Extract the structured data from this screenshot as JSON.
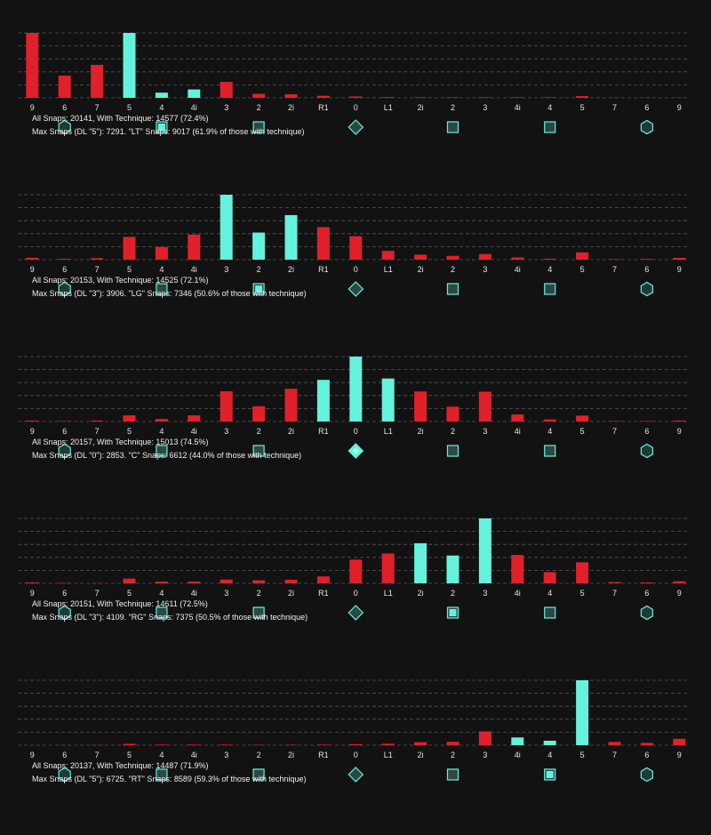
{
  "colors": {
    "technique": "#64f2dc",
    "other": "#e0202a",
    "grid": "#555555",
    "background": "#121212"
  },
  "chart_data": [
    {
      "type": "bar",
      "categories": [
        "9",
        "6",
        "7",
        "5",
        "4",
        "4i",
        "3",
        "2",
        "2i",
        "R1",
        "0",
        "L1",
        "2i",
        "2",
        "3",
        "4i",
        "4",
        "5",
        "7",
        "6",
        "9"
      ],
      "values": [
        7291,
        2500,
        3700,
        7291,
        580,
        940,
        1790,
        450,
        400,
        230,
        150,
        80,
        60,
        60,
        60,
        60,
        60,
        190,
        20,
        20,
        20
      ],
      "ylim": [
        0,
        7291
      ],
      "highlight": [
        3,
        4,
        5
      ],
      "markers": [
        {
          "pos": 1,
          "shape": "hexagon-icon",
          "active": false
        },
        {
          "pos": 4,
          "shape": "square-icon",
          "active": true
        },
        {
          "pos": 7,
          "shape": "square-icon",
          "active": false
        },
        {
          "pos": 10,
          "shape": "diamond-icon",
          "active": false
        },
        {
          "pos": 13,
          "shape": "square-icon",
          "active": false
        },
        {
          "pos": 16,
          "shape": "square-icon",
          "active": false
        },
        {
          "pos": 19,
          "shape": "hexagon-icon",
          "active": false
        }
      ],
      "stats_line1": "All Snaps: 20141, With Technique: 14577 (72.4%)",
      "stats_line2": "Max Snaps (DL \"5\"): 7291. \"LT\" Snaps: 9017 (61.9% of those with technique)"
    },
    {
      "type": "bar",
      "categories": [
        "9",
        "6",
        "7",
        "5",
        "4",
        "4i",
        "3",
        "2",
        "2i",
        "R1",
        "0",
        "L1",
        "2i",
        "2",
        "3",
        "4i",
        "4",
        "5",
        "7",
        "6",
        "9"
      ],
      "values": [
        110,
        50,
        90,
        1370,
        760,
        1510,
        3906,
        1630,
        2680,
        1960,
        1410,
        530,
        300,
        230,
        340,
        130,
        60,
        440,
        30,
        40,
        110
      ],
      "ylim": [
        0,
        3906
      ],
      "highlight": [
        6,
        7,
        8
      ],
      "markers": [
        {
          "pos": 1,
          "shape": "hexagon-icon",
          "active": false
        },
        {
          "pos": 4,
          "shape": "square-icon",
          "active": false
        },
        {
          "pos": 7,
          "shape": "square-icon",
          "active": true
        },
        {
          "pos": 10,
          "shape": "diamond-icon",
          "active": false
        },
        {
          "pos": 13,
          "shape": "square-icon",
          "active": false
        },
        {
          "pos": 16,
          "shape": "square-icon",
          "active": false
        },
        {
          "pos": 19,
          "shape": "hexagon-icon",
          "active": false
        }
      ],
      "stats_line1": "All Snaps: 20153, With Technique: 14525 (72.1%)",
      "stats_line2": "Max Snaps (DL \"3\"): 3906. \"LG\" Snaps: 7346 (50.6% of those with technique)"
    },
    {
      "type": "bar",
      "categories": [
        "9",
        "6",
        "7",
        "5",
        "4",
        "4i",
        "3",
        "2",
        "2i",
        "R1",
        "0",
        "L1",
        "2i",
        "2",
        "3",
        "4i",
        "4",
        "5",
        "7",
        "6",
        "9"
      ],
      "values": [
        40,
        20,
        40,
        270,
        110,
        270,
        1330,
        670,
        1440,
        1830,
        2853,
        1890,
        1320,
        650,
        1310,
        310,
        90,
        260,
        20,
        20,
        40
      ],
      "ylim": [
        0,
        2853
      ],
      "highlight": [
        9,
        10,
        11
      ],
      "markers": [
        {
          "pos": 1,
          "shape": "hexagon-icon",
          "active": false
        },
        {
          "pos": 4,
          "shape": "square-icon",
          "active": false
        },
        {
          "pos": 7,
          "shape": "square-icon",
          "active": false
        },
        {
          "pos": 10,
          "shape": "diamond-icon",
          "active": true
        },
        {
          "pos": 13,
          "shape": "square-icon",
          "active": false
        },
        {
          "pos": 16,
          "shape": "square-icon",
          "active": false
        },
        {
          "pos": 19,
          "shape": "hexagon-icon",
          "active": false
        }
      ],
      "stats_line1": "All Snaps: 20157, With Technique: 15013 (74.5%)",
      "stats_line2": "Max Snaps (DL \"0\"): 2853. \"C\" Snaps: 6612 (44.0% of those with technique)"
    },
    {
      "type": "bar",
      "categories": [
        "9",
        "6",
        "7",
        "5",
        "4",
        "4i",
        "3",
        "2",
        "2i",
        "R1",
        "0",
        "L1",
        "2i",
        "2",
        "3",
        "4i",
        "4",
        "5",
        "7",
        "6",
        "9"
      ],
      "values": [
        60,
        30,
        20,
        300,
        110,
        110,
        240,
        190,
        230,
        440,
        1500,
        1890,
        2540,
        1760,
        4109,
        1800,
        710,
        1330,
        80,
        60,
        130
      ],
      "ylim": [
        0,
        4109
      ],
      "highlight": [
        12,
        13,
        14
      ],
      "markers": [
        {
          "pos": 1,
          "shape": "hexagon-icon",
          "active": false
        },
        {
          "pos": 4,
          "shape": "square-icon",
          "active": false
        },
        {
          "pos": 7,
          "shape": "square-icon",
          "active": false
        },
        {
          "pos": 10,
          "shape": "diamond-icon",
          "active": false
        },
        {
          "pos": 13,
          "shape": "square-icon",
          "active": true
        },
        {
          "pos": 16,
          "shape": "square-icon",
          "active": false
        },
        {
          "pos": 19,
          "shape": "hexagon-icon",
          "active": false
        }
      ],
      "stats_line1": "All Snaps: 20151, With Technique: 14611 (72.5%)",
      "stats_line2": "Max Snaps (DL \"3\"): 4109. \"RG\" Snaps: 7375 (50.5% of those with technique)"
    },
    {
      "type": "bar",
      "categories": [
        "9",
        "6",
        "7",
        "5",
        "4",
        "4i",
        "3",
        "2",
        "2i",
        "R1",
        "0",
        "L1",
        "2i",
        "2",
        "3",
        "4i",
        "4",
        "5",
        "7",
        "6",
        "9"
      ],
      "values": [
        10,
        10,
        20,
        140,
        60,
        60,
        60,
        40,
        40,
        60,
        110,
        150,
        310,
        350,
        1420,
        800,
        460,
        6725,
        340,
        240,
        660
      ],
      "ylim": [
        0,
        6725
      ],
      "highlight": [
        15,
        16,
        17
      ],
      "markers": [
        {
          "pos": 1,
          "shape": "hexagon-icon",
          "active": false
        },
        {
          "pos": 4,
          "shape": "square-icon",
          "active": false
        },
        {
          "pos": 7,
          "shape": "square-icon",
          "active": false
        },
        {
          "pos": 10,
          "shape": "diamond-icon",
          "active": false
        },
        {
          "pos": 13,
          "shape": "square-icon",
          "active": false
        },
        {
          "pos": 16,
          "shape": "square-icon",
          "active": true
        },
        {
          "pos": 19,
          "shape": "hexagon-icon",
          "active": false
        }
      ],
      "stats_line1": "All Snaps: 20137, With Technique: 14487 (71.9%)",
      "stats_line2": "Max Snaps (DL \"5\"): 6725. \"RT\" Snaps: 8589 (59.3% of those with technique)"
    }
  ]
}
